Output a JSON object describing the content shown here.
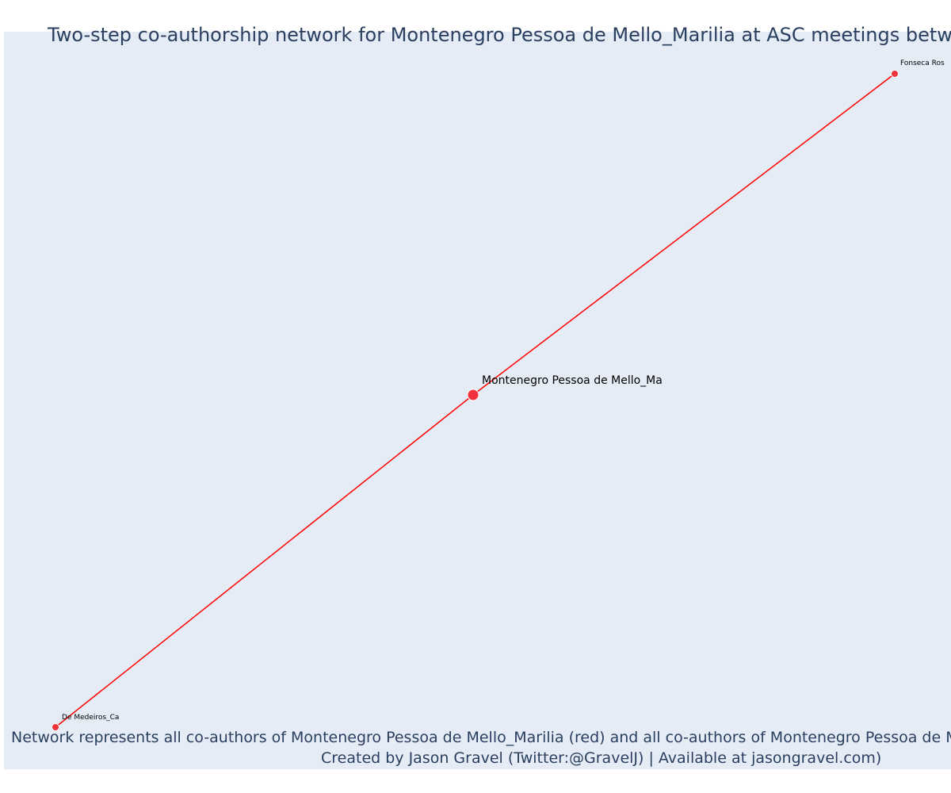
{
  "title": "Two-step co-authorship network for Montenegro Pessoa de Mello_Marilia at ASC meetings betwee",
  "footer": {
    "line1": "Network represents all co-authors of Montenegro Pessoa de Mello_Marilia (red) and all co-authors of Montenegro Pessoa de Me",
    "line2": "Created by Jason Gravel (Twitter:@GravelJ) | Available at jasongravel.com)"
  },
  "colors": {
    "plot_background": "#e5ecf6",
    "edge": "#ff0000",
    "node": "#f0323c",
    "title_text": "#2a3f5f"
  },
  "nodes": [
    {
      "id": "center",
      "label": "Montenegro Pessoa de Mello_Ma",
      "role": "focal"
    },
    {
      "id": "n1",
      "label": "Fonseca Ros",
      "role": "co-author"
    },
    {
      "id": "n2",
      "label": "De Medeiros_Ca",
      "role": "co-author"
    }
  ],
  "edges": [
    {
      "source": "center",
      "target": "n1"
    },
    {
      "source": "center",
      "target": "n2"
    }
  ]
}
